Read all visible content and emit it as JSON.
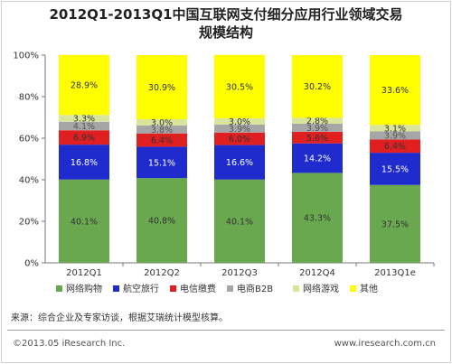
{
  "title_lines": [
    "2012Q1-2013Q1中国互联网支付细分应用行业领域交易",
    "规模结构"
  ],
  "source": "来源：综合企业及专家访谈，根据艾瑞统计模型核算。",
  "copyright": "©2013.05 iResearch Inc.",
  "website": "www.iresearch.com.cn",
  "chart_data": {
    "type": "bar",
    "stacked": true,
    "categories": [
      "2012Q1",
      "2012Q2",
      "2012Q3",
      "2012Q4",
      "2013Q1e"
    ],
    "series": [
      {
        "name": "网络购物",
        "color": "#6aa84f",
        "values": [
          40.1,
          40.8,
          40.1,
          43.3,
          37.5
        ],
        "labels": [
          "40.1%",
          "40.8%",
          "40.1%",
          "43.3%",
          "37.5%"
        ]
      },
      {
        "name": "航空旅行",
        "color": "#1f2bcc",
        "values": [
          16.8,
          15.1,
          16.6,
          14.2,
          15.5
        ],
        "labels": [
          "16.8%",
          "15.1%",
          "16.6%",
          "14.2%",
          "15.5%"
        ]
      },
      {
        "name": "电信缴费",
        "color": "#e02020",
        "values": [
          6.9,
          6.4,
          6.0,
          5.6,
          6.4
        ],
        "labels": [
          "6.9%",
          "6.4%",
          "6.0%",
          "5.6%",
          "6.4%"
        ]
      },
      {
        "name": "电商B2B",
        "color": "#a6a6a6",
        "values": [
          4.1,
          3.8,
          3.9,
          3.9,
          3.9
        ],
        "labels": [
          "4.1%",
          "3.8%",
          "3.9%",
          "3.9%",
          "3.9%"
        ]
      },
      {
        "name": "网络游戏",
        "color": "#d9e59a",
        "values": [
          3.3,
          3.0,
          3.0,
          2.8,
          3.1
        ],
        "labels": [
          "3.3%",
          "3.0%",
          "3.0%",
          "2.8%",
          "3.1%"
        ]
      },
      {
        "name": "其他",
        "color": "#ffff00",
        "values": [
          28.9,
          30.9,
          30.5,
          30.2,
          33.6
        ],
        "labels": [
          "28.9%",
          "30.9%",
          "30.5%",
          "30.2%",
          "33.6%"
        ]
      }
    ],
    "ylim": [
      0,
      100
    ],
    "yticks": [
      "0%",
      "20%",
      "40%",
      "60%",
      "80%",
      "100%"
    ],
    "legend_position": "bottom",
    "grid": false
  }
}
